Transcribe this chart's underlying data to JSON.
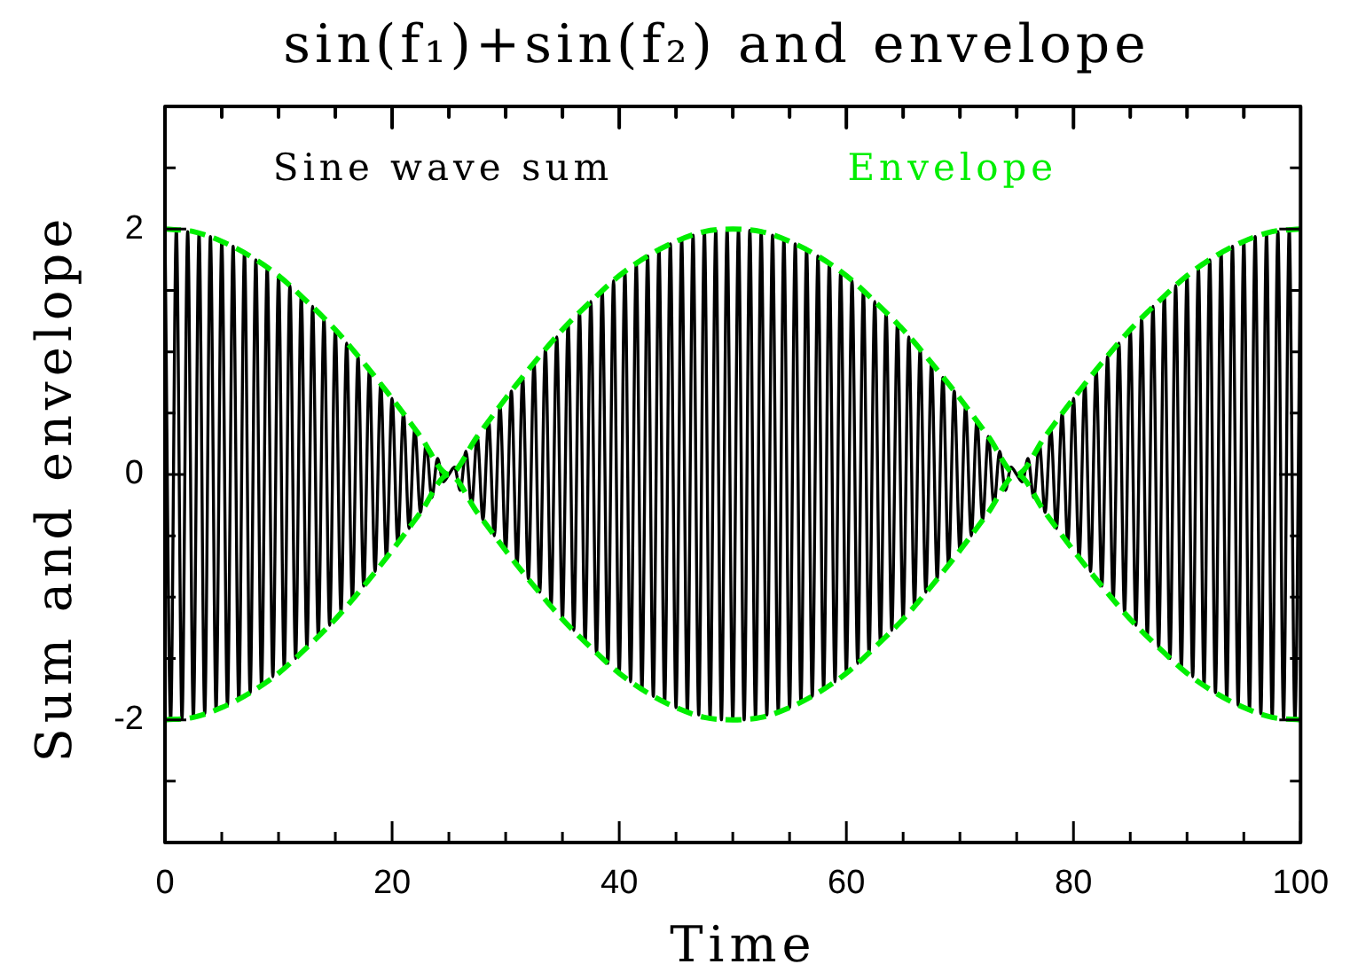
{
  "chart_data": {
    "type": "line",
    "title": "sin(f₁)+sin(f₂) and envelope",
    "xlabel": "Time",
    "ylabel": "Sum and envelope",
    "xlim": [
      0,
      100
    ],
    "ylim": [
      -3,
      3
    ],
    "xticks": [
      0,
      {
        "value": 5,
        "label": null
      },
      {
        "value": 10,
        "label": null
      },
      {
        "value": 15,
        "label": null
      },
      20,
      {
        "value": 25,
        "label": null
      },
      {
        "value": 30,
        "label": null
      },
      {
        "value": 35,
        "label": null
      },
      40,
      {
        "value": 45,
        "label": null
      },
      {
        "value": 50,
        "label": null
      },
      {
        "value": 55,
        "label": null
      },
      60,
      {
        "value": 65,
        "label": null
      },
      {
        "value": 70,
        "label": null
      },
      {
        "value": 75,
        "label": null
      },
      80,
      {
        "value": 85,
        "label": null
      },
      {
        "value": 90,
        "label": null
      },
      {
        "value": 95,
        "label": null
      },
      100
    ],
    "yticks": [
      {
        "value": -2.5,
        "label": null
      },
      -2,
      {
        "value": -1.5,
        "label": null
      },
      {
        "value": -1,
        "label": null
      },
      {
        "value": -0.5,
        "label": null
      },
      0,
      {
        "value": 0.5,
        "label": null
      },
      {
        "value": 1,
        "label": null
      },
      {
        "value": 1.5,
        "label": null
      },
      2,
      {
        "value": 2.5,
        "label": null
      }
    ],
    "grid": false,
    "legend": "top",
    "marker": "none",
    "series": [
      {
        "name": "Sine wave sum",
        "color": "#000000",
        "line_style": "solid",
        "x": [
          0,
          0.5,
          1,
          1.5,
          2,
          2.5,
          3,
          3.5,
          4,
          4.5,
          5,
          5.5,
          6,
          6.5,
          7,
          7.5,
          8,
          8.5,
          9,
          9.5,
          10,
          10.5,
          11,
          11.5,
          12,
          12.5,
          13,
          13.5,
          14,
          14.5,
          15,
          15.5,
          16,
          16.5,
          17,
          17.5,
          18,
          18.5,
          19,
          19.5,
          20,
          20.5,
          21,
          21.5,
          22,
          22.5,
          23,
          23.5,
          24,
          24.5,
          25,
          25.5,
          26,
          26.5,
          27,
          27.5,
          28,
          28.5,
          29,
          29.5,
          30,
          30.5,
          31,
          31.5,
          32,
          32.5,
          33,
          33.5,
          34,
          34.5,
          35,
          35.5,
          36,
          36.5,
          37,
          37.5,
          38,
          38.5,
          39,
          39.5,
          40,
          40.5,
          41,
          41.5,
          42,
          42.5,
          43,
          43.5,
          44,
          44.5,
          45,
          45.5,
          46,
          46.5,
          47,
          47.5,
          48,
          48.5,
          49,
          49.5,
          50,
          50.5,
          51,
          51.5,
          52,
          52.5,
          53,
          53.5,
          54,
          54.5,
          55,
          55.5,
          56,
          56.5,
          57,
          57.5,
          58,
          58.5,
          59,
          59.5,
          60,
          60.5,
          61,
          61.5,
          62,
          62.5,
          63,
          63.5,
          64,
          64.5,
          65,
          65.5,
          66,
          66.5,
          67,
          67.5,
          68,
          68.5,
          69,
          69.5,
          70,
          70.5,
          71,
          71.5,
          72,
          72.5,
          73,
          73.5,
          74,
          74.5,
          75,
          75.5,
          76,
          76.5,
          77,
          77.5,
          78,
          78.5,
          79,
          79.5,
          80,
          80.5,
          81,
          81.5,
          82,
          82.5,
          83,
          83.5,
          84,
          84.5,
          85,
          85.5,
          86,
          86.5,
          87,
          87.5,
          88,
          88.5,
          89,
          89.5,
          90,
          90.5,
          91,
          91.5,
          92,
          92.5,
          93,
          93.5,
          94,
          94.5,
          95,
          95.5,
          96,
          96.5,
          97,
          97.5,
          98,
          98.5,
          99,
          99.5,
          100
        ],
        "values": [
          2,
          -2,
          2,
          -1.99,
          1.98,
          -1.98,
          1.96,
          -1.95,
          1.94,
          -1.92,
          1.9,
          -1.88,
          1.86,
          -1.84,
          1.81,
          -1.78,
          1.75,
          -1.72,
          1.69,
          -1.65,
          1.62,
          -1.58,
          1.54,
          -1.5,
          1.46,
          -1.41,
          1.37,
          -1.32,
          1.27,
          -1.23,
          1.18,
          -1.12,
          1.07,
          -1.02,
          0.96,
          -0.91,
          0.85,
          -0.79,
          0.74,
          -0.68,
          0.62,
          -0.56,
          0.5,
          -0.44,
          0.37,
          -0.31,
          0.25,
          -0.19,
          0.13,
          -0.06,
          0,
          0.06,
          -0.13,
          0.19,
          -0.25,
          0.31,
          -0.37,
          0.44,
          -0.5,
          0.56,
          -0.62,
          0.68,
          -0.74,
          0.79,
          -0.85,
          0.91,
          -0.96,
          1.02,
          -1.07,
          1.12,
          -1.18,
          1.23,
          -1.27,
          1.32,
          -1.37,
          1.41,
          -1.46,
          1.5,
          -1.54,
          1.58,
          -1.62,
          1.65,
          -1.69,
          1.72,
          -1.75,
          1.78,
          -1.81,
          1.84,
          -1.86,
          1.88,
          -1.9,
          1.92,
          -1.94,
          1.95,
          -1.96,
          1.98,
          -1.98,
          1.99,
          -2,
          2,
          -2,
          2,
          -2,
          1.99,
          -1.98,
          1.98,
          -1.96,
          1.95,
          -1.94,
          1.92,
          -1.9,
          1.88,
          -1.86,
          1.84,
          -1.81,
          1.78,
          -1.75,
          1.72,
          -1.69,
          1.65,
          -1.62,
          1.58,
          -1.54,
          1.5,
          -1.46,
          1.41,
          -1.37,
          1.32,
          -1.27,
          1.23,
          -1.18,
          1.12,
          -1.07,
          1.02,
          -0.96,
          0.91,
          -0.85,
          0.79,
          -0.74,
          0.68,
          -0.62,
          0.56,
          -0.5,
          0.44,
          -0.37,
          0.31,
          -0.25,
          0.19,
          -0.13,
          0.06,
          0,
          -0.06,
          0.13,
          -0.19,
          0.25,
          -0.31,
          0.37,
          -0.44,
          0.5,
          -0.56,
          0.62,
          -0.68,
          0.74,
          -0.79,
          0.85,
          -0.91,
          0.96,
          -1.02,
          1.07,
          -1.12,
          1.18,
          -1.23,
          1.27,
          -1.32,
          1.37,
          -1.41,
          1.46,
          -1.5,
          1.54,
          -1.58,
          1.62,
          -1.65,
          1.69,
          -1.72,
          1.75,
          -1.78,
          1.81,
          -1.84,
          1.86,
          -1.88,
          1.9,
          -1.92,
          1.94,
          -1.95,
          1.96,
          -1.98,
          1.98,
          -1.99,
          2,
          -2,
          2
        ]
      },
      {
        "name": "Envelope",
        "color": "#00ee00",
        "line_style": "dashed",
        "x": [
          0,
          2.5,
          5,
          7.5,
          10,
          12.5,
          15,
          17.5,
          20,
          22.5,
          25,
          27.5,
          30,
          32.5,
          35,
          37.5,
          40,
          42.5,
          45,
          47.5,
          50,
          52.5,
          55,
          57.5,
          60,
          62.5,
          65,
          67.5,
          70,
          72.5,
          75,
          77.5,
          80,
          82.5,
          85,
          87.5,
          90,
          92.5,
          95,
          97.5,
          100
        ],
        "values": [
          2,
          1.98,
          1.9,
          1.78,
          1.62,
          1.41,
          1.18,
          0.91,
          0.62,
          0.31,
          0,
          0.31,
          0.62,
          0.91,
          1.18,
          1.41,
          1.62,
          1.78,
          1.9,
          1.98,
          2,
          1.98,
          1.9,
          1.78,
          1.62,
          1.41,
          1.18,
          0.91,
          0.62,
          0.31,
          0,
          0.31,
          0.62,
          0.91,
          1.18,
          1.41,
          1.62,
          1.78,
          1.9,
          1.98,
          2
        ]
      },
      {
        "color": "#00ee00",
        "line_style": "dashed",
        "x": [
          0,
          2.5,
          5,
          7.5,
          10,
          12.5,
          15,
          17.5,
          20,
          22.5,
          25,
          27.5,
          30,
          32.5,
          35,
          37.5,
          40,
          42.5,
          45,
          47.5,
          50,
          52.5,
          55,
          57.5,
          60,
          62.5,
          65,
          67.5,
          70,
          72.5,
          75,
          77.5,
          80,
          82.5,
          85,
          87.5,
          90,
          92.5,
          95,
          97.5,
          100
        ],
        "values": [
          -2,
          -1.98,
          -1.9,
          -1.78,
          -1.62,
          -1.41,
          -1.18,
          -0.91,
          -0.62,
          -0.31,
          0,
          -0.31,
          -0.62,
          -0.91,
          -1.18,
          -1.41,
          -1.62,
          -1.78,
          -1.9,
          -1.98,
          -2,
          -1.98,
          -1.9,
          -1.78,
          -1.62,
          -1.41,
          -1.18,
          -0.91,
          -0.62,
          -0.31,
          0,
          -0.31,
          -0.62,
          -0.91,
          -1.18,
          -1.41,
          -1.62,
          -1.78,
          -1.9,
          -1.98,
          -2
        ]
      }
    ]
  }
}
